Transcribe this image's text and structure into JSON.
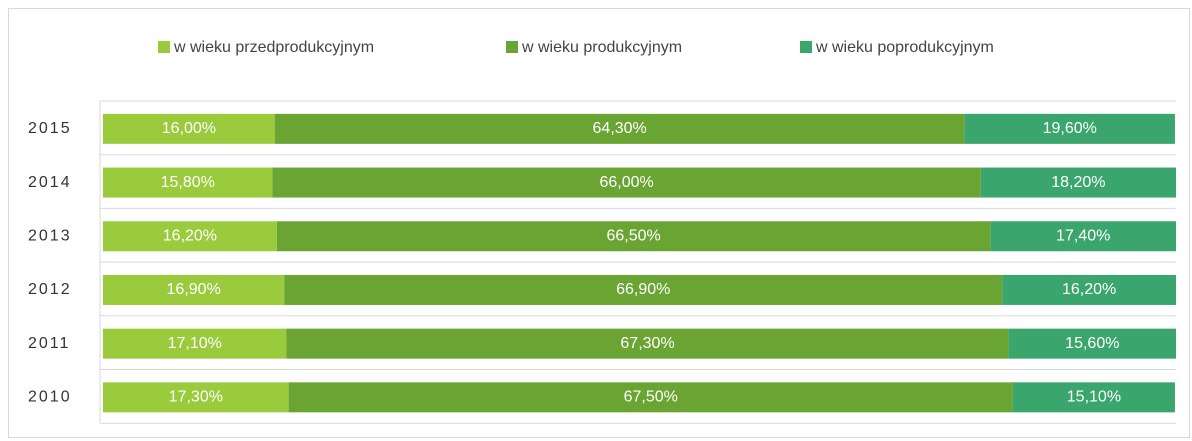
{
  "chart_data": {
    "type": "stacked-bar-horizontal",
    "categories": [
      "2015",
      "2014",
      "2013",
      "2012",
      "2011",
      "2010"
    ],
    "series": [
      {
        "name": "w wieku przedprodukcyjnym",
        "color": "#9acb3c",
        "values": [
          16.0,
          15.8,
          16.2,
          16.9,
          17.1,
          17.3
        ],
        "value_labels": [
          "16,00%",
          "15,80%",
          "16,20%",
          "16,90%",
          "17,10%",
          "17,30%"
        ]
      },
      {
        "name": "w wieku produkcyjnym",
        "color": "#6aa533",
        "values": [
          64.3,
          66.0,
          66.5,
          66.9,
          67.3,
          67.5
        ],
        "value_labels": [
          "64,30%",
          "66,00%",
          "66,50%",
          "66,90%",
          "67,30%",
          "67,50%"
        ]
      },
      {
        "name": "w wieku poprodukcyjnym",
        "color": "#3aa56d",
        "values": [
          19.6,
          18.2,
          17.4,
          16.2,
          15.6,
          15.1
        ],
        "value_labels": [
          "19,60%",
          "18,20%",
          "17,40%",
          "16,20%",
          "15,60%",
          "15,10%"
        ]
      }
    ],
    "xlim": [
      0,
      100
    ],
    "legend": "top"
  }
}
